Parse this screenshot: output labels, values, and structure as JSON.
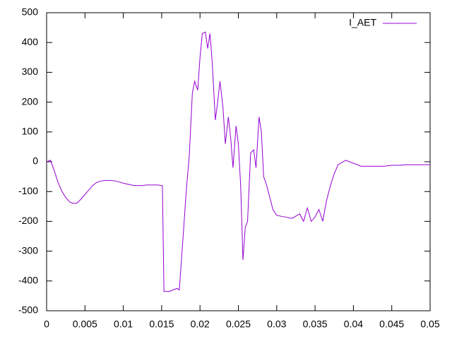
{
  "chart_data": {
    "type": "line",
    "x": [
      0,
      0.0005,
      0.001,
      0.0015,
      0.002,
      0.0025,
      0.003,
      0.0035,
      0.004,
      0.0045,
      0.005,
      0.0055,
      0.006,
      0.0065,
      0.007,
      0.0075,
      0.008,
      0.0085,
      0.009,
      0.0095,
      0.01,
      0.0105,
      0.011,
      0.0115,
      0.012,
      0.0125,
      0.013,
      0.0135,
      0.014,
      0.0145,
      0.015,
      0.0151,
      0.0153,
      0.016,
      0.017,
      0.0173,
      0.0178,
      0.0182,
      0.0186,
      0.019,
      0.0193,
      0.0197,
      0.02,
      0.0203,
      0.0207,
      0.021,
      0.0213,
      0.0216,
      0.022,
      0.0223,
      0.0226,
      0.023,
      0.0233,
      0.0237,
      0.024,
      0.0243,
      0.0247,
      0.025,
      0.0253,
      0.0256,
      0.0259,
      0.0262,
      0.0266,
      0.027,
      0.0273,
      0.0277,
      0.028,
      0.0283,
      0.0287,
      0.029,
      0.0295,
      0.03,
      0.031,
      0.032,
      0.033,
      0.0335,
      0.034,
      0.0345,
      0.035,
      0.0355,
      0.036,
      0.0365,
      0.037,
      0.0375,
      0.038,
      0.039,
      0.04,
      0.041,
      0.042,
      0.043,
      0.044,
      0.045,
      0.046,
      0.047,
      0.048,
      0.049,
      0.05
    ],
    "series": [
      {
        "name": "I_AET",
        "color": "#9400d3",
        "values": [
          0,
          5,
          -30,
          -70,
          -100,
          -120,
          -135,
          -140,
          -138,
          -125,
          -110,
          -95,
          -80,
          -70,
          -65,
          -63,
          -63,
          -63,
          -65,
          -68,
          -72,
          -75,
          -78,
          -80,
          -80,
          -80,
          -78,
          -78,
          -78,
          -78,
          -80,
          -80,
          -435,
          -435,
          -425,
          -430,
          -250,
          -100,
          20,
          230,
          270,
          240,
          350,
          430,
          435,
          380,
          430,
          330,
          140,
          200,
          270,
          180,
          60,
          150,
          80,
          -20,
          120,
          60,
          -80,
          -330,
          -220,
          -200,
          30,
          40,
          -20,
          150,
          100,
          -50,
          -80,
          -110,
          -160,
          -180,
          -185,
          -190,
          -175,
          -200,
          -155,
          -200,
          -185,
          -160,
          -200,
          -130,
          -80,
          -40,
          -10,
          5,
          -5,
          -15,
          -15,
          -15,
          -15,
          -12,
          -12,
          -10,
          -10,
          -10,
          -10
        ]
      }
    ],
    "xlim": [
      0,
      0.05
    ],
    "ylim": [
      -500,
      500
    ],
    "xticks": [
      0,
      0.005,
      0.01,
      0.015,
      0.02,
      0.025,
      0.03,
      0.035,
      0.04,
      0.045,
      0.05
    ],
    "yticks": [
      -500,
      -400,
      -300,
      -200,
      -100,
      0,
      100,
      200,
      300,
      400,
      500
    ],
    "legend": "top-right",
    "grid": false
  }
}
